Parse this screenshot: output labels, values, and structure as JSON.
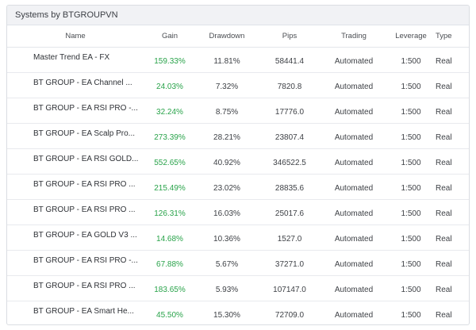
{
  "panel": {
    "title": "Systems by BTGROUPVN"
  },
  "table": {
    "columns": [
      "Name",
      "Gain",
      "Drawdown",
      "Pips",
      "Trading",
      "Leverage",
      "Type"
    ],
    "rows": [
      {
        "name": "Master Trend EA - FX",
        "gain": "159.33%",
        "drawdown": "11.81%",
        "pips": "58441.4",
        "trading": "Automated",
        "leverage": "1:500",
        "type": "Real"
      },
      {
        "name": "BT GROUP - EA Channel ...",
        "gain": "24.03%",
        "drawdown": "7.32%",
        "pips": "7820.8",
        "trading": "Automated",
        "leverage": "1:500",
        "type": "Real"
      },
      {
        "name": "BT GROUP - EA RSI PRO -...",
        "gain": "32.24%",
        "drawdown": "8.75%",
        "pips": "17776.0",
        "trading": "Automated",
        "leverage": "1:500",
        "type": "Real"
      },
      {
        "name": "BT GROUP - EA Scalp Pro...",
        "gain": "273.39%",
        "drawdown": "28.21%",
        "pips": "23807.4",
        "trading": "Automated",
        "leverage": "1:500",
        "type": "Real"
      },
      {
        "name": "BT GROUP - EA RSI GOLD...",
        "gain": "552.65%",
        "drawdown": "40.92%",
        "pips": "346522.5",
        "trading": "Automated",
        "leverage": "1:500",
        "type": "Real"
      },
      {
        "name": "BT GROUP - EA RSI PRO ...",
        "gain": "215.49%",
        "drawdown": "23.02%",
        "pips": "28835.6",
        "trading": "Automated",
        "leverage": "1:500",
        "type": "Real"
      },
      {
        "name": "BT GROUP - EA RSI PRO ...",
        "gain": "126.31%",
        "drawdown": "16.03%",
        "pips": "25017.6",
        "trading": "Automated",
        "leverage": "1:500",
        "type": "Real"
      },
      {
        "name": "BT GROUP - EA GOLD V3 ...",
        "gain": "14.68%",
        "drawdown": "10.36%",
        "pips": "1527.0",
        "trading": "Automated",
        "leverage": "1:500",
        "type": "Real"
      },
      {
        "name": "BT GROUP - EA RSI PRO -...",
        "gain": "67.88%",
        "drawdown": "5.67%",
        "pips": "37271.0",
        "trading": "Automated",
        "leverage": "1:500",
        "type": "Real"
      },
      {
        "name": "BT GROUP - EA RSI PRO ...",
        "gain": "183.65%",
        "drawdown": "5.93%",
        "pips": "107147.0",
        "trading": "Automated",
        "leverage": "1:500",
        "type": "Real"
      },
      {
        "name": "BT GROUP - EA Smart He...",
        "gain": "45.50%",
        "drawdown": "15.30%",
        "pips": "72709.0",
        "trading": "Automated",
        "leverage": "1:500",
        "type": "Real"
      }
    ]
  },
  "colors": {
    "gain_positive": "#29a34a",
    "header_bg": "#f1f2f5",
    "border": "#dadde2"
  }
}
